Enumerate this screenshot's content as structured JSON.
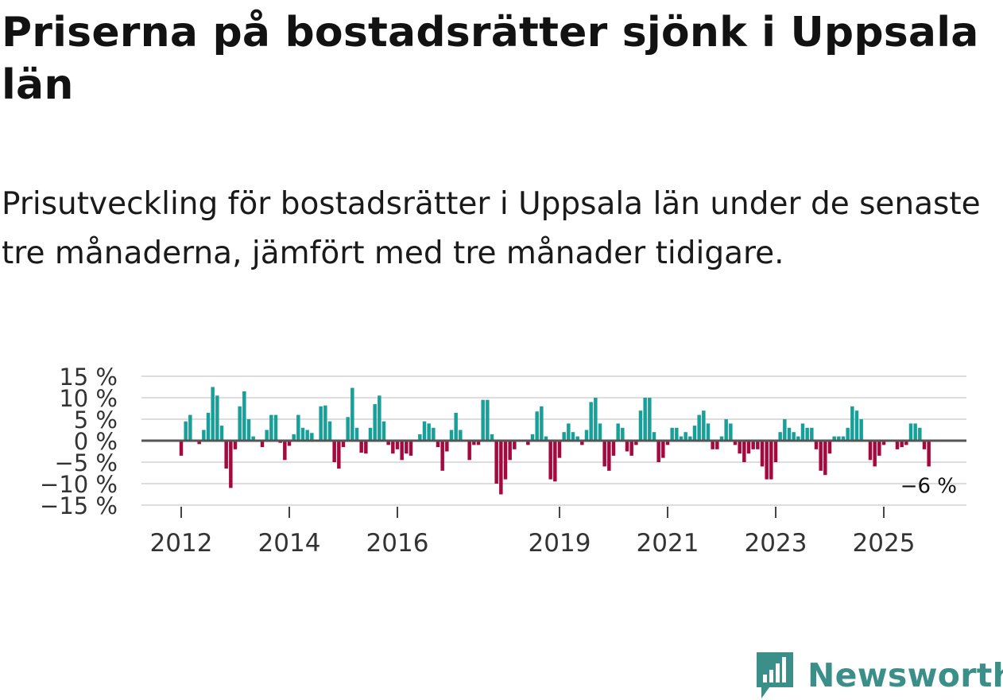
{
  "title": "Priserna på bostadsrätter sjönk i Uppsala län",
  "subtitle": "Prisutveckling för bostadsrätter i Uppsala län under de senaste tre månaderna, jämfört med tre månader tidigare.",
  "brand": {
    "name": "Newsworthy"
  },
  "colors": {
    "positive": "#17a09a",
    "negative": "#a3083f",
    "grid": "#dddddd",
    "zero": "#555555"
  },
  "chart_data": {
    "type": "bar",
    "title": "Priserna på bostadsrätter sjönk i Uppsala län",
    "xlabel": "",
    "ylabel": "",
    "ylim": [
      -15,
      15
    ],
    "y_ticks": [
      15,
      10,
      5,
      0,
      -5,
      -10,
      -15
    ],
    "y_tick_labels": [
      "15 %",
      "10 %",
      "5 %",
      "0 %",
      "−5 %",
      "−10 %",
      "−15 %"
    ],
    "x_ticks": [
      2012,
      2014,
      2016,
      2019,
      2021,
      2023,
      2025
    ],
    "x_tick_labels": [
      "2012",
      "2014",
      "2016",
      "2019",
      "2021",
      "2023",
      "2025"
    ],
    "x_start": 2012.0,
    "x_step": 0.083333,
    "end_label": "−6 %",
    "values": [
      -3.5,
      4.5,
      6,
      0,
      -0.8,
      2.5,
      6.5,
      12.5,
      10.5,
      3.5,
      -6.5,
      -11,
      -2,
      8,
      11.5,
      5,
      1,
      0,
      -1.5,
      2.5,
      6,
      6,
      -0.5,
      -4.5,
      -1.2,
      1.5,
      6,
      3,
      2.5,
      1.8,
      0,
      8,
      8.2,
      4.5,
      -5,
      -6.5,
      -1.5,
      5.5,
      12.3,
      3,
      -2.8,
      -3,
      3,
      8.5,
      10.5,
      4.5,
      -1,
      -3,
      -2,
      -4.5,
      -3,
      -3.5,
      0,
      1.5,
      4.5,
      4,
      3,
      -1.5,
      -7,
      -2.5,
      2.5,
      6.5,
      2.5,
      0,
      -4.5,
      -1,
      -1,
      9.5,
      9.5,
      1.5,
      -10,
      -12.5,
      -9,
      -4.5,
      -2,
      0,
      0,
      -1,
      1.5,
      6.8,
      8,
      1,
      -9,
      -9.5,
      -4,
      2,
      4,
      2,
      1,
      -1,
      2.5,
      9,
      10,
      4,
      -6,
      -7,
      -3.5,
      4,
      3,
      -2.5,
      -3.5,
      -1,
      7,
      10,
      10,
      2,
      -5,
      -4,
      -1,
      3,
      3,
      1,
      2,
      1,
      3.5,
      6,
      7,
      4,
      -2,
      -2,
      1,
      5,
      4,
      -1,
      -3,
      -5,
      -3,
      -2,
      -2,
      -6,
      -9,
      -9,
      -5,
      2,
      5,
      3,
      2,
      1,
      4,
      3,
      3,
      -2,
      -7,
      -8,
      -3,
      1,
      1,
      1,
      3,
      8,
      7,
      5,
      0,
      -4.5,
      -6,
      -3.5,
      -1,
      0,
      0,
      -2,
      -1.5,
      -1,
      4,
      4,
      3,
      -2,
      -6
    ]
  }
}
